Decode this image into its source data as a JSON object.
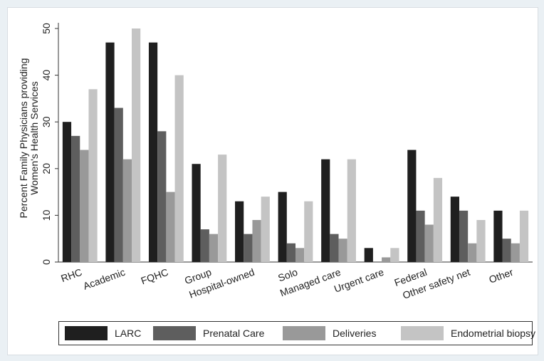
{
  "chart_data": {
    "type": "bar",
    "ylabel": "Percent Family Physicians providing Women's Health Services",
    "ylabel_lines": [
      "Percent Family Physicians providing",
      "Women's Health Services"
    ],
    "ylim": [
      0,
      52
    ],
    "yticks": [
      0,
      10,
      20,
      30,
      40,
      50
    ],
    "grid": false,
    "legend_position": "bottom",
    "categories": [
      "RHC",
      "Academic",
      "FQHC",
      "Group",
      "Hospital-owned",
      "Solo",
      "Managed care",
      "Urgent care",
      "Federal",
      "Other safety net",
      "Other"
    ],
    "series": [
      {
        "name": "LARC",
        "color": "#1f1f1f",
        "values": [
          30,
          47,
          47,
          21,
          13,
          15,
          22,
          3,
          24,
          14,
          11
        ]
      },
      {
        "name": "Prenatal Care",
        "color": "#5e5e5e",
        "values": [
          27,
          33,
          28,
          7,
          6,
          4,
          6,
          0,
          11,
          11,
          5
        ]
      },
      {
        "name": "Deliveries",
        "color": "#999999",
        "values": [
          24,
          22,
          15,
          6,
          9,
          3,
          5,
          1,
          8,
          4,
          4
        ]
      },
      {
        "name": "Endometrial biopsy",
        "color": "#c4c4c4",
        "values": [
          37,
          50,
          40,
          23,
          14,
          13,
          22,
          3,
          18,
          9,
          11
        ]
      }
    ]
  }
}
